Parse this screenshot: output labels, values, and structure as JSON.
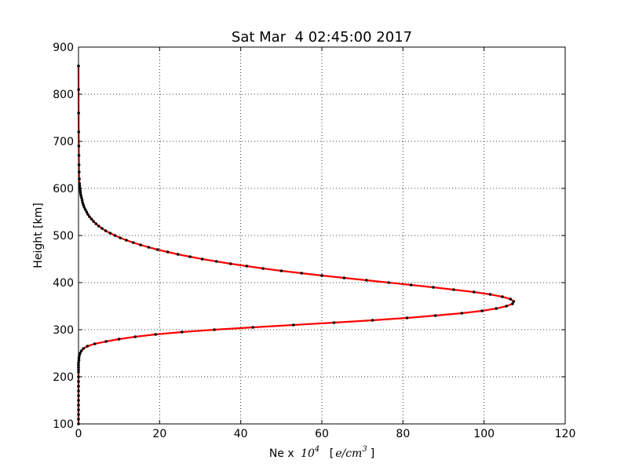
{
  "chart_data": {
    "type": "line",
    "title": "Sat Mar  4 02:45:00 2017",
    "xlabel": {
      "prefix": "Ne x",
      "base": "10",
      "exponent": "4",
      "unit_open": "[",
      "unit_var": "e/cm",
      "unit_exp": "3",
      "unit_close": "]"
    },
    "ylabel": "Height [km]",
    "xlim": [
      0,
      120
    ],
    "ylim": [
      100,
      900
    ],
    "xticks": [
      "0",
      "20",
      "40",
      "60",
      "80",
      "100",
      "120"
    ],
    "yticks": [
      "100",
      "200",
      "300",
      "400",
      "500",
      "600",
      "700",
      "800",
      "900"
    ],
    "grid": true,
    "line_color": "#ff0000",
    "marker_color": "#000000",
    "series": [
      {
        "x": [
          0.0,
          0.0,
          0.0,
          0.0,
          0.0,
          0.0,
          0.0,
          0.0,
          0.0,
          0.0,
          0.0,
          0.0,
          0.0,
          0.0,
          0.0,
          0.0,
          0.1,
          0.1,
          0.2,
          0.4,
          0.7,
          1.2,
          2.2,
          4.0,
          6.8,
          10.0,
          14.0,
          19.0,
          25.5,
          33.5,
          43.0,
          53.0,
          63.0,
          72.5,
          81.0,
          88.0,
          94.5,
          99.5,
          103.0,
          105.5,
          107.0,
          107.3,
          106.5,
          104.5,
          101.5,
          97.5,
          92.5,
          87.5,
          82.0,
          76.5,
          71.0,
          65.5,
          60.0,
          55.0,
          50.0,
          45.5,
          41.5,
          37.5,
          34.0,
          30.5,
          27.5,
          24.5,
          22.0,
          19.5,
          17.3,
          15.3,
          13.5,
          11.8,
          10.3,
          9.0,
          7.8,
          6.7,
          5.8,
          5.0,
          4.3,
          3.7,
          3.2,
          2.7,
          2.3,
          2.0,
          1.7,
          1.4,
          1.2,
          1.0,
          0.9,
          0.75,
          0.6,
          0.5,
          0.45,
          0.35,
          0.3,
          0.25,
          0.2,
          0.15,
          0.12,
          0.1,
          0.08,
          0.05,
          0.03,
          0.02,
          0.0
        ],
        "y": [
          100,
          110,
          120,
          130,
          140,
          150,
          160,
          170,
          180,
          190,
          200,
          210,
          215,
          220,
          225,
          230,
          235,
          240,
          245,
          250,
          255,
          260,
          265,
          270,
          275,
          280,
          285,
          290,
          295,
          300,
          305,
          310,
          315,
          320,
          325,
          330,
          335,
          340,
          345,
          350,
          355,
          360,
          365,
          370,
          375,
          380,
          385,
          390,
          395,
          400,
          405,
          410,
          415,
          420,
          425,
          430,
          435,
          440,
          445,
          450,
          455,
          460,
          465,
          470,
          475,
          480,
          485,
          490,
          495,
          500,
          505,
          510,
          515,
          520,
          525,
          530,
          535,
          540,
          545,
          550,
          555,
          560,
          565,
          570,
          575,
          580,
          585,
          590,
          595,
          600,
          605,
          610,
          620,
          635,
          650,
          670,
          690,
          720,
          760,
          810,
          860
        ]
      }
    ]
  }
}
